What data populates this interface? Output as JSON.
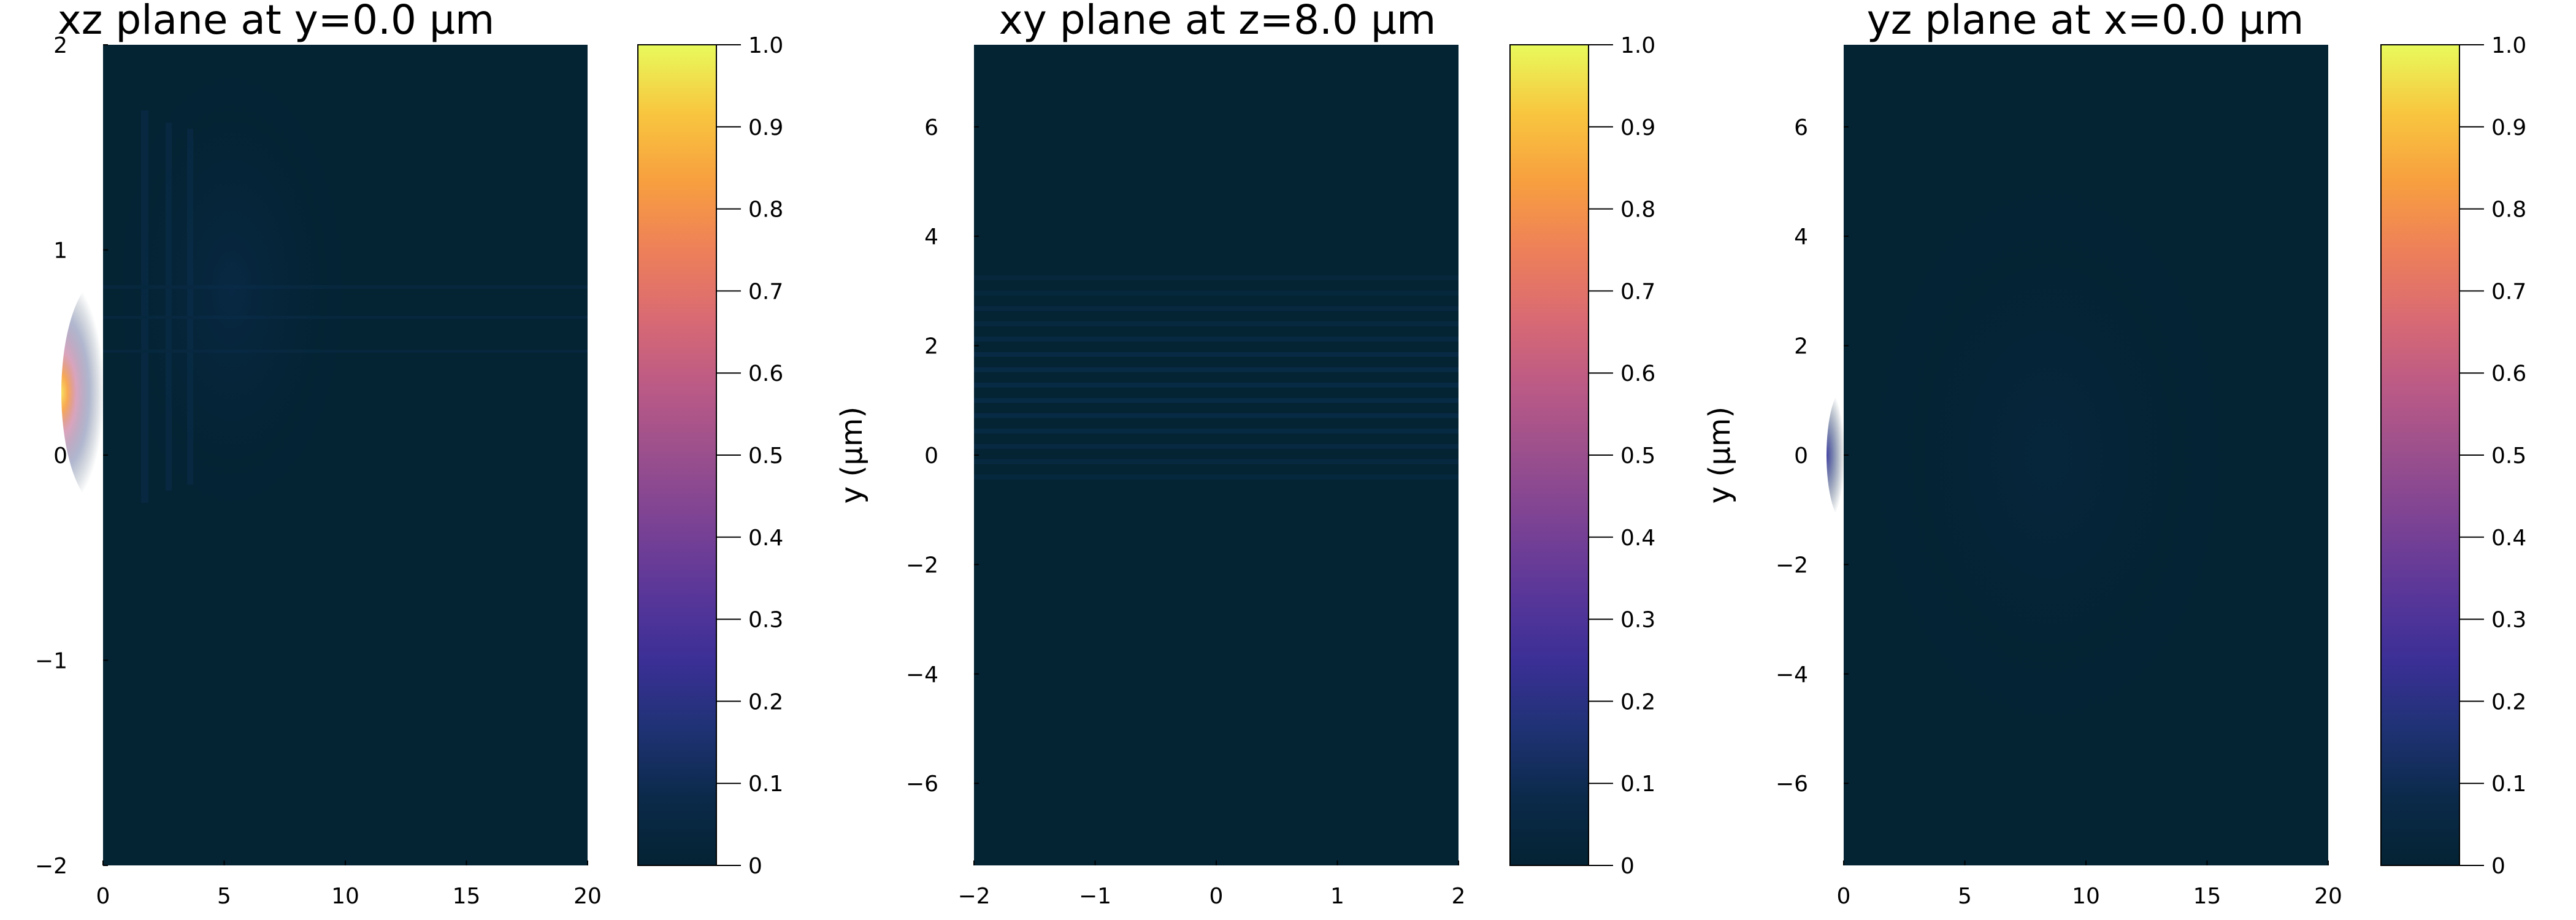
{
  "colormap": {
    "name": "thermal",
    "stops": [
      "#042333",
      "#0b2a4a",
      "#1f3275",
      "#3b2f96",
      "#5a3799",
      "#7b4294",
      "#9a4f8d",
      "#bb5a86",
      "#d96a73",
      "#ee8059",
      "#f79f3f",
      "#f8c63f",
      "#e8fa5b"
    ]
  },
  "chart_data": [
    {
      "type": "heatmap",
      "title": "xz plane at y=0.0 µm",
      "xlabel": "",
      "ylabel": "",
      "xlim": [
        0,
        20
      ],
      "ylim": [
        -2,
        2
      ],
      "xticks": [
        "0",
        "5",
        "10",
        "15",
        "20"
      ],
      "yticks": [
        "−2",
        "−1",
        "0",
        "1",
        "2"
      ],
      "colorbar": {
        "min": 0,
        "max": 1,
        "ticks": [
          "0",
          "0.1",
          "0.2",
          "0.3",
          "0.4",
          "0.5",
          "0.6",
          "0.7",
          "0.8",
          "0.9",
          "1.0"
        ]
      },
      "peak_value": 1.0,
      "peak_location": {
        "x": 0,
        "y": 0.3
      }
    },
    {
      "type": "heatmap",
      "title": "xy plane at z=8.0 µm",
      "xlabel": "",
      "ylabel": "y (µm)",
      "xlim": [
        -2,
        2
      ],
      "ylim": [
        -7.5,
        7.5
      ],
      "xticks": [
        "−2",
        "−1",
        "0",
        "1",
        "2"
      ],
      "yticks": [
        "−6",
        "−4",
        "−2",
        "0",
        "2",
        "4",
        "6"
      ],
      "colorbar": {
        "min": 0,
        "max": 1,
        "ticks": [
          "0",
          "0.1",
          "0.2",
          "0.3",
          "0.4",
          "0.5",
          "0.6",
          "0.7",
          "0.8",
          "0.9",
          "1.0"
        ]
      },
      "peak_value": 0.05,
      "pattern": "faint horizontal fringes between y≈0 and y≈3"
    },
    {
      "type": "heatmap",
      "title": "yz plane at x=0.0 µm",
      "xlabel": "",
      "ylabel": "y (µm)",
      "xlim": [
        0,
        20
      ],
      "ylim": [
        -7.5,
        7.5
      ],
      "xticks": [
        "0",
        "5",
        "10",
        "15",
        "20"
      ],
      "yticks": [
        "−6",
        "−4",
        "−2",
        "0",
        "2",
        "4",
        "6"
      ],
      "colorbar": {
        "min": 0,
        "max": 1,
        "ticks": [
          "0",
          "0.1",
          "0.2",
          "0.3",
          "0.4",
          "0.5",
          "0.6",
          "0.7",
          "0.8",
          "0.9",
          "1.0"
        ]
      },
      "peak_value": 0.15,
      "peak_location": {
        "x": 0,
        "y": 0
      }
    }
  ]
}
